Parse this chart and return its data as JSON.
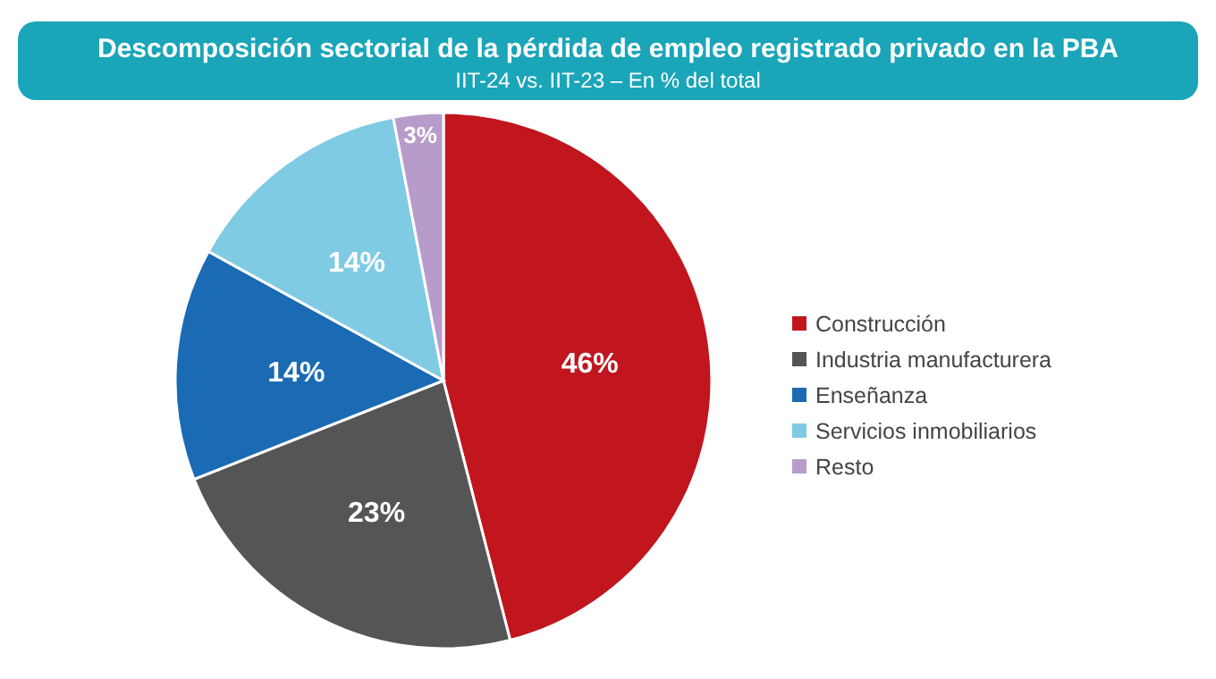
{
  "chart_data": {
    "type": "pie",
    "title": "Descomposición sectorial de la pérdida de empleo registrado privado en la PBA",
    "subtitle": "IIT-24 vs. IIT-23 – En % del total",
    "categories": [
      "Construcción",
      "Industria manufacturera",
      "Enseñanza",
      "Servicios inmobiliarios",
      "Resto"
    ],
    "values": [
      46,
      23,
      14,
      14,
      3
    ],
    "value_labels": [
      "46%",
      "23%",
      "14%",
      "14%",
      "3%"
    ],
    "colors": [
      "#c1161e",
      "#555555",
      "#1a6ab4",
      "#7fcbe4",
      "#b79ccb"
    ],
    "legend": "right"
  }
}
